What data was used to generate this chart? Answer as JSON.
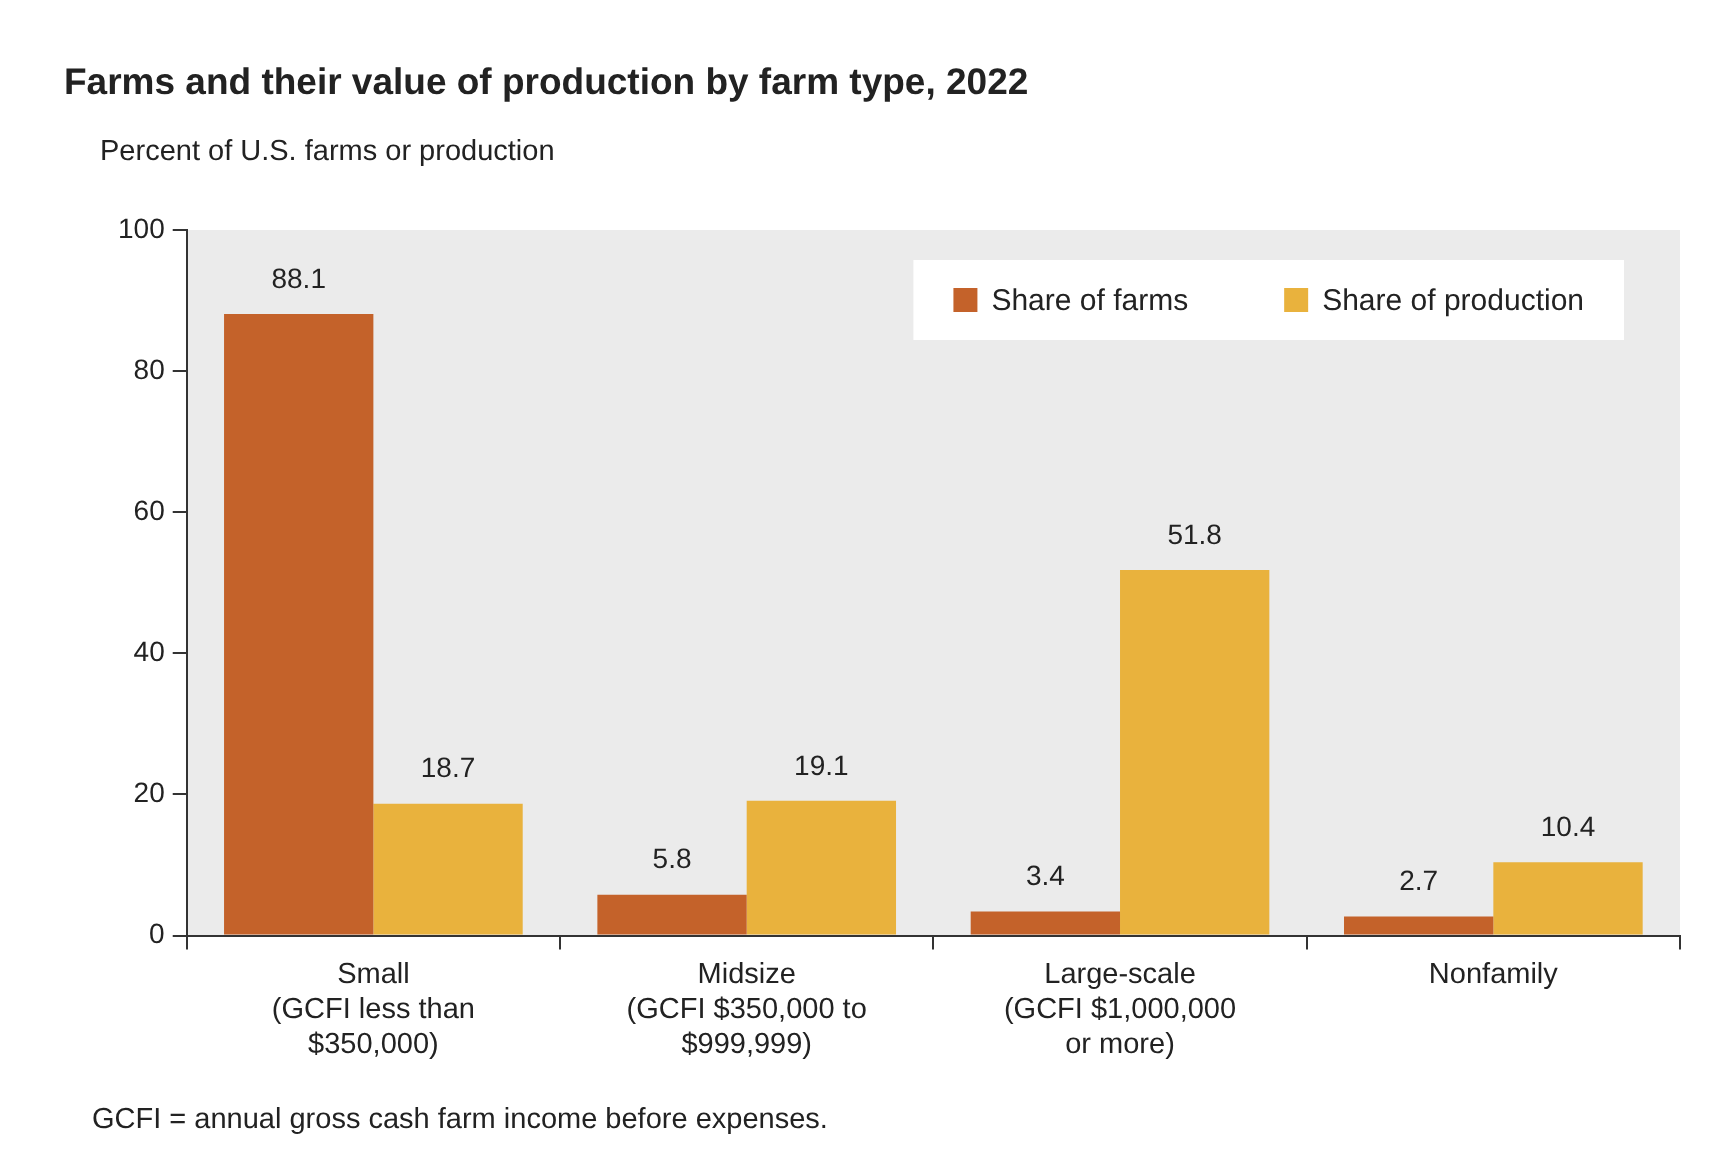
{
  "chart_data": {
    "type": "bar",
    "title": "Farms and their value of production by farm type, 2022",
    "subtitle": "Percent of U.S. farms or production",
    "categories": [
      "Small\n(GCFI less than\n$350,000)",
      "Midsize\n(GCFI $350,000 to\n$999,999)",
      "Large-scale\n(GCFI $1,000,000\nor more)",
      "Nonfamily"
    ],
    "series": [
      {
        "name": "Share of farms",
        "color": "#c4622a",
        "values": [
          88.1,
          5.8,
          3.4,
          2.7
        ]
      },
      {
        "name": "Share of production",
        "color": "#e9b23d",
        "values": [
          18.7,
          19.1,
          51.8,
          10.4
        ]
      }
    ],
    "ylim": [
      0,
      100
    ],
    "yticks": [
      0,
      20,
      40,
      60,
      80,
      100
    ],
    "grid": false,
    "legend": "top right",
    "data_labels": true,
    "annotations": [
      "GCFI = annual gross cash farm income before expenses."
    ]
  }
}
